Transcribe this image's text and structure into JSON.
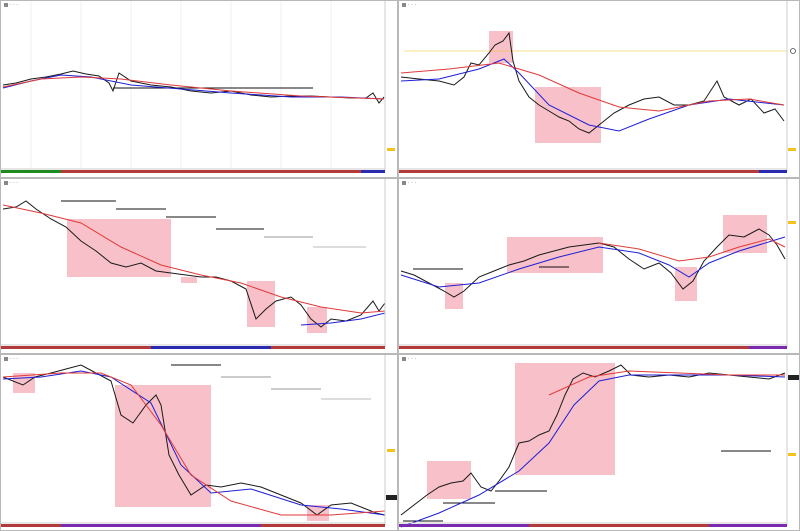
{
  "colors": {
    "candle": "#1a1a1a",
    "ma_fast": "#1f1fd6",
    "ma_slow": "#e03a3a",
    "highlight": "#f7b5c0",
    "level_line": "#111111",
    "grid": "#f2f2f2",
    "marker_yellow": "#f0c419"
  },
  "windows": [
    {
      "id": "w1",
      "title": "· · ·",
      "bottom_strip": [
        "#1e8a1e",
        "#b23a3a",
        "#4b2bb0"
      ]
    },
    {
      "id": "w2",
      "title": "· · ·",
      "bottom_strip": [
        "#b23a3a",
        "#b23a3a",
        "#2b2bb0"
      ]
    },
    {
      "id": "w3",
      "title": "· · ·",
      "bottom_strip": [
        "#b23a3a",
        "#2b2bb0",
        "#b23a3a"
      ]
    },
    {
      "id": "w4",
      "title": "· · ·",
      "bottom_strip": [
        "#b23a3a",
        "#b23a3a",
        "#7a2bb0"
      ]
    },
    {
      "id": "w5",
      "title": "· · ·",
      "bottom_strip": [
        "#b23a3a",
        "#7a2bb0",
        "#b23a3a"
      ]
    },
    {
      "id": "w6",
      "title": "· · ·",
      "bottom_strip": [
        "#7a2bb0",
        "#b23a3a",
        "#7a2bb0"
      ]
    }
  ]
}
